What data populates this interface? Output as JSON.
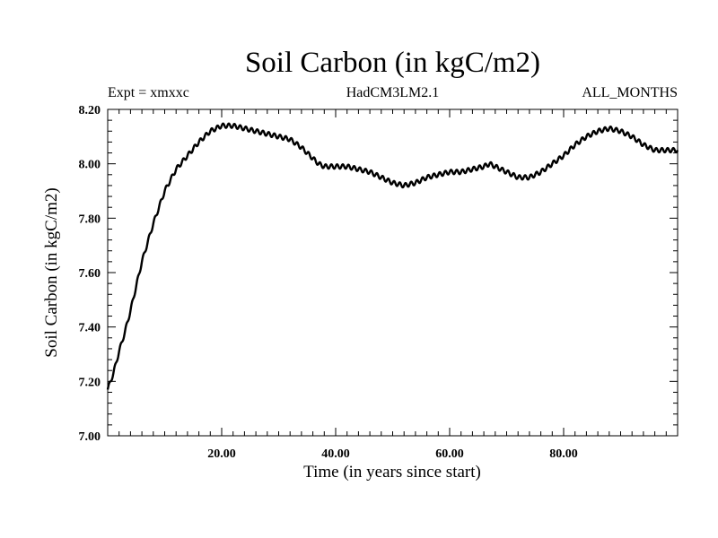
{
  "chart_data": {
    "type": "line",
    "title": "Soil Carbon (in kgC/m2)",
    "left_label": "Expt = xmxxc",
    "center_label": "HadCM3LM2.1",
    "right_label": "ALL_MONTHS",
    "xlabel": "Time (in years since start)",
    "ylabel": "Soil Carbon (in kgC/m2)",
    "xlim": [
      0,
      100
    ],
    "ylim": [
      7.0,
      8.2
    ],
    "xticks": [
      20,
      40,
      60,
      80
    ],
    "xtick_labels": [
      "20.00",
      "40.00",
      "60.00",
      "80.00"
    ],
    "yticks": [
      7.0,
      7.2,
      7.4,
      7.6,
      7.8,
      8.0,
      8.2
    ],
    "ytick_labels": [
      "7.00",
      "7.20",
      "7.40",
      "7.60",
      "7.80",
      "8.00",
      "8.20"
    ],
    "grid": false,
    "series": [
      {
        "name": "",
        "seasonal_amplitude": 0.008,
        "x": [
          0,
          1,
          2,
          3,
          4,
          5,
          6,
          8,
          10,
          12,
          14,
          16,
          18,
          20,
          22,
          24,
          26,
          28,
          30,
          32,
          34,
          36,
          37,
          38,
          40,
          42,
          44,
          46,
          48,
          50,
          52,
          54,
          56,
          58,
          60,
          62,
          64,
          66,
          67,
          68,
          70,
          72,
          74,
          76,
          78,
          80,
          82,
          84,
          86,
          88,
          90,
          92,
          94,
          96,
          98,
          100
        ],
        "y": [
          7.17,
          7.23,
          7.31,
          7.38,
          7.46,
          7.55,
          7.64,
          7.78,
          7.9,
          7.98,
          8.03,
          8.08,
          8.12,
          8.14,
          8.14,
          8.13,
          8.12,
          8.11,
          8.1,
          8.09,
          8.06,
          8.02,
          8.0,
          7.99,
          7.99,
          7.99,
          7.98,
          7.97,
          7.95,
          7.93,
          7.92,
          7.93,
          7.95,
          7.96,
          7.97,
          7.97,
          7.98,
          7.99,
          8.0,
          7.99,
          7.97,
          7.95,
          7.95,
          7.97,
          8.0,
          8.03,
          8.07,
          8.1,
          8.12,
          8.13,
          8.12,
          8.1,
          8.07,
          8.05,
          8.05,
          8.05
        ]
      }
    ]
  }
}
